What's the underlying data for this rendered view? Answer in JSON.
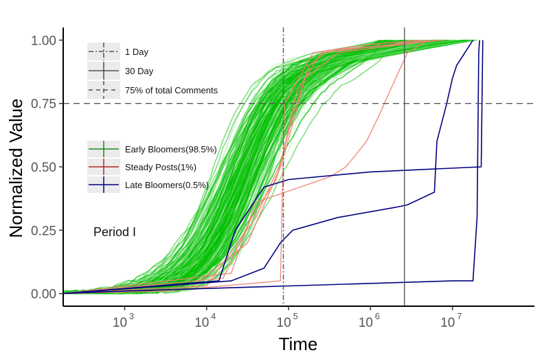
{
  "chart_data": {
    "type": "line",
    "xscale": "log10",
    "xlim": [
      2.25,
      8.0
    ],
    "ylim": [
      -0.05,
      1.05
    ],
    "xlabel": "Time",
    "ylabel": "Normalized Value",
    "x_ticks": [
      {
        "exp": 3,
        "base": "10",
        "sup": "3"
      },
      {
        "exp": 4,
        "base": "10",
        "sup": "4"
      },
      {
        "exp": 5,
        "base": "10",
        "sup": "5"
      },
      {
        "exp": 6,
        "base": "10",
        "sup": "6"
      },
      {
        "exp": 7,
        "base": "10",
        "sup": "7"
      }
    ],
    "y_ticks": [
      {
        "value": 0.0,
        "label": "0.00"
      },
      {
        "value": 0.25,
        "label": "0.25"
      },
      {
        "value": 0.5,
        "label": "0.50"
      },
      {
        "value": 0.75,
        "label": "0.75"
      },
      {
        "value": 1.0,
        "label": "1.00"
      }
    ],
    "reference_lines": [
      {
        "name": "1 Day",
        "axis": "x",
        "value": 86400,
        "style": "dotdash"
      },
      {
        "name": "30 Day",
        "axis": "x",
        "value": 2592000,
        "style": "solid"
      },
      {
        "name": "75% of total Comments",
        "axis": "y",
        "value": 0.75,
        "style": "dashed"
      }
    ],
    "annotation": "Period I",
    "legend_lines": [
      "1 Day",
      "30 Day",
      "75% of total Comments"
    ],
    "legend_groups": [
      {
        "label": "Early Bloomers(98.5%)",
        "color": "#1a8a1a"
      },
      {
        "label": "Steady Posts(1%)",
        "color": "#b22222"
      },
      {
        "label": "Late Bloomers(0.5%)",
        "color": "#000080"
      }
    ],
    "colors": {
      "early": "#00c000",
      "early_light": "#9ae69a",
      "steady": "#f08070",
      "late": "#000080",
      "ref_line": "#555555"
    },
    "early_bloomers": {
      "count": 260,
      "median_log_time_at_half": 4.45,
      "spread_log": 0.25,
      "plateau_value": 0.95
    },
    "series": [
      {
        "group": "steady",
        "points": [
          [
            2.25,
            0
          ],
          [
            3.5,
            0.01
          ],
          [
            4.9,
            0.05
          ],
          [
            4.95,
            0.75
          ],
          [
            5.3,
            0.95
          ],
          [
            5.9,
            0.98
          ],
          [
            6.6,
            1.0
          ]
        ]
      },
      {
        "group": "steady",
        "points": [
          [
            2.25,
            0
          ],
          [
            3.8,
            0.02
          ],
          [
            4.5,
            0.2
          ],
          [
            4.9,
            0.5
          ],
          [
            5.1,
            0.8
          ],
          [
            5.4,
            0.95
          ],
          [
            6.7,
            1.0
          ]
        ]
      },
      {
        "group": "steady",
        "points": [
          [
            2.25,
            0
          ],
          [
            4.0,
            0.03
          ],
          [
            4.6,
            0.3
          ],
          [
            4.95,
            0.55
          ],
          [
            5.2,
            0.85
          ],
          [
            5.6,
            0.95
          ],
          [
            6.8,
            1.0
          ]
        ]
      },
      {
        "group": "steady",
        "points": [
          [
            2.25,
            0
          ],
          [
            4.3,
            0.08
          ],
          [
            4.6,
            0.36
          ],
          [
            5.5,
            0.46
          ],
          [
            5.7,
            0.5
          ],
          [
            5.95,
            0.6
          ],
          [
            6.1,
            0.7
          ],
          [
            6.35,
            0.88
          ],
          [
            6.45,
            0.95
          ],
          [
            6.7,
            1.0
          ]
        ]
      },
      {
        "group": "steady",
        "points": [
          [
            2.25,
            0
          ],
          [
            4.2,
            0.06
          ],
          [
            4.55,
            0.3
          ],
          [
            4.85,
            0.45
          ],
          [
            5.05,
            0.7
          ],
          [
            5.25,
            0.9
          ],
          [
            5.5,
            0.96
          ],
          [
            6.9,
            1.0
          ]
        ]
      },
      {
        "group": "late",
        "points": [
          [
            2.25,
            0
          ],
          [
            4.15,
            0.05
          ],
          [
            4.35,
            0.25
          ],
          [
            4.7,
            0.42
          ],
          [
            5.0,
            0.45
          ],
          [
            6.0,
            0.48
          ],
          [
            7.35,
            0.5
          ],
          [
            7.37,
            1.0
          ]
        ]
      },
      {
        "group": "late",
        "points": [
          [
            2.25,
            0
          ],
          [
            4.3,
            0.05
          ],
          [
            4.7,
            0.1
          ],
          [
            4.9,
            0.2
          ],
          [
            5.05,
            0.25
          ],
          [
            5.6,
            0.3
          ],
          [
            6.3,
            0.34
          ],
          [
            6.45,
            0.35
          ],
          [
            6.78,
            0.4
          ],
          [
            6.81,
            0.6
          ],
          [
            6.93,
            0.75
          ],
          [
            7.0,
            0.85
          ],
          [
            7.05,
            0.9
          ],
          [
            7.15,
            0.95
          ],
          [
            7.25,
            1.0
          ]
        ]
      },
      {
        "group": "late",
        "points": [
          [
            2.25,
            0
          ],
          [
            3.0,
            0.01
          ],
          [
            4.0,
            0.02
          ],
          [
            5.0,
            0.03
          ],
          [
            6.0,
            0.04
          ],
          [
            7.0,
            0.05
          ],
          [
            7.25,
            0.05
          ],
          [
            7.3,
            0.3
          ],
          [
            7.32,
            0.95
          ],
          [
            7.33,
            1.0
          ]
        ]
      }
    ]
  }
}
